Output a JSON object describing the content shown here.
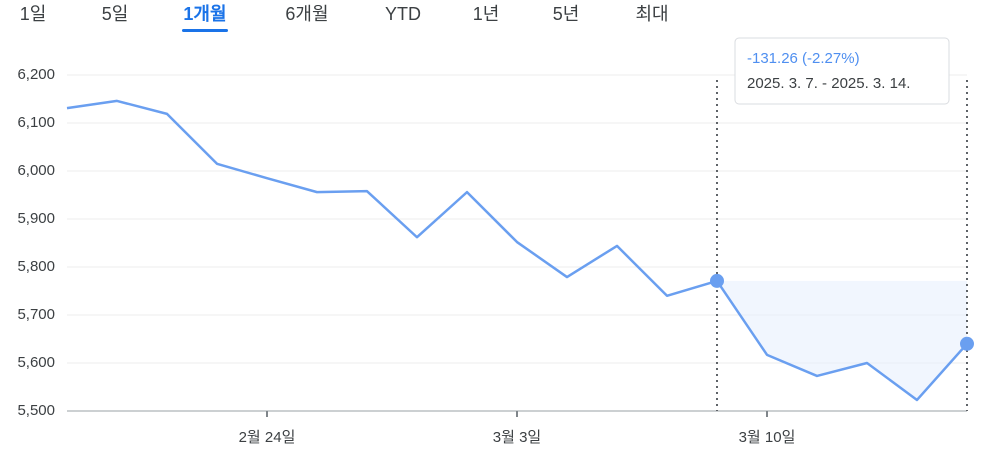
{
  "tabs": [
    {
      "label": "1일",
      "active": false
    },
    {
      "label": "5일",
      "active": false
    },
    {
      "label": "1개월",
      "active": true
    },
    {
      "label": "6개월",
      "active": false
    },
    {
      "label": "YTD",
      "active": false
    },
    {
      "label": "1년",
      "active": false
    },
    {
      "label": "5년",
      "active": false
    },
    {
      "label": "최대",
      "active": false
    }
  ],
  "chart_data": {
    "type": "line",
    "categories": [
      null,
      null,
      null,
      null,
      "2월 24일",
      null,
      null,
      null,
      null,
      "3월 3일",
      null,
      null,
      null,
      null,
      "3월 10일",
      null,
      null,
      null,
      null
    ],
    "values": [
      6131,
      6146,
      6119,
      6015,
      5985,
      5956,
      5958,
      5862,
      5956,
      5852,
      5779,
      5844,
      5740,
      5771,
      5617,
      5573,
      5600,
      5523,
      5640
    ],
    "color": "#6a9ff0",
    "ylim": [
      5500,
      6200
    ],
    "yticks": [
      {
        "value": 5500,
        "label": "5,500"
      },
      {
        "value": 5600,
        "label": "5,600"
      },
      {
        "value": 5700,
        "label": "5,700"
      },
      {
        "value": 5800,
        "label": "5,800"
      },
      {
        "value": 5900,
        "label": "5,900"
      },
      {
        "value": 6000,
        "label": "6,000"
      },
      {
        "value": 6100,
        "label": "6,100"
      },
      {
        "value": 6200,
        "label": "6,200"
      }
    ],
    "grid": true,
    "selection": {
      "start": 13,
      "end": 18,
      "change_label": "-131.26 (-2.27%)",
      "range_label": "2025. 3. 7. - 2025. 3. 14."
    }
  }
}
